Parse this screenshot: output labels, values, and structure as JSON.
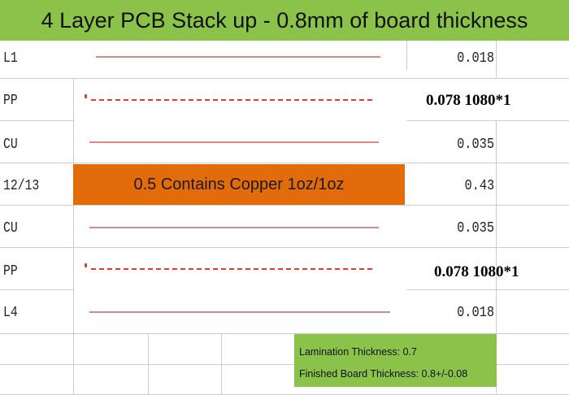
{
  "header": {
    "title": "4 Layer PCB Stack up - 0.8mm of board thickness"
  },
  "layers": [
    {
      "label": "L1",
      "value": "0.018",
      "line": "solid"
    },
    {
      "label": "PP",
      "value": "0.078 1080*1",
      "line": "dashed"
    },
    {
      "label": "CU",
      "value": "0.035",
      "line": "solid"
    },
    {
      "label": "12/13",
      "value": "0.43",
      "line": "core",
      "core_text": "0.5 Contains Copper 1oz/1oz"
    },
    {
      "label": "CU",
      "value": "0.035",
      "line": "solid"
    },
    {
      "label": "PP",
      "value": "0.078 1080*1",
      "line": "dashed"
    },
    {
      "label": "L4",
      "value": "0.018",
      "line": "solid"
    }
  ],
  "notes": {
    "lamination": "Lamination Thickness: 0.7",
    "finished": "Finished Board Thickness: 0.8+/-0.08"
  },
  "colors": {
    "banner": "#8bc34a",
    "core": "#e36c0a",
    "copper_line": "#e08686",
    "prepreg_line": "#e53935"
  }
}
